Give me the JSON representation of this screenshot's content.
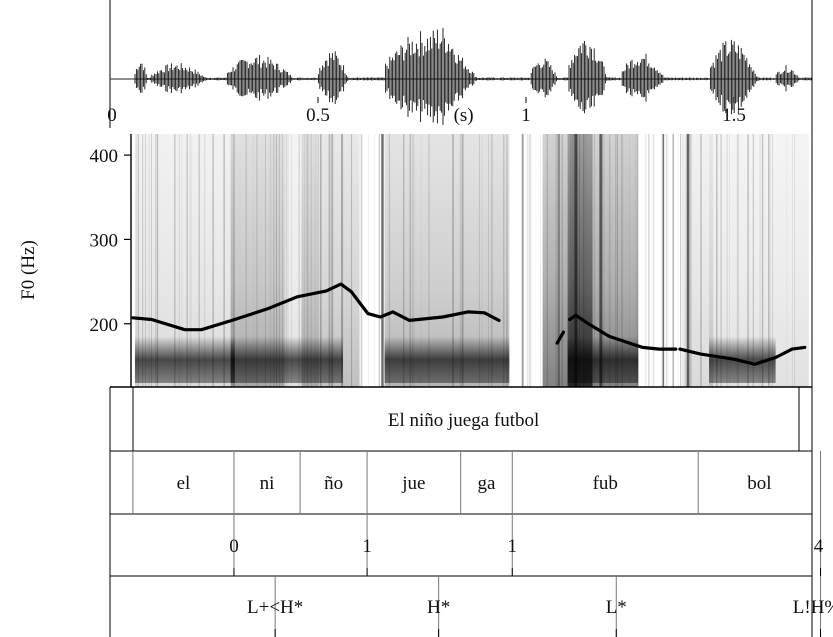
{
  "waveform": {
    "time_ticks": [
      {
        "t": 0,
        "label": "0"
      },
      {
        "t": 0.5,
        "label": "0.5"
      },
      {
        "t": 1,
        "label": "1"
      },
      {
        "t": 1.5,
        "label": "1.5"
      }
    ],
    "unit_label": "(s)",
    "unit_t": 0.85,
    "duration": 1.68
  },
  "spectrogram": {
    "y_label": "F0 (Hz)",
    "y_ticks": [
      {
        "v": 400,
        "label": "400"
      },
      {
        "v": 300,
        "label": "300"
      },
      {
        "v": 200,
        "label": "200"
      }
    ],
    "y_range": [
      125,
      425
    ]
  },
  "f0_contour": [
    [
      [
        0.055,
        207
      ],
      [
        0.1,
        205
      ],
      [
        0.18,
        193
      ],
      [
        0.22,
        193
      ],
      [
        0.3,
        205
      ],
      [
        0.38,
        218
      ],
      [
        0.45,
        232
      ],
      [
        0.52,
        239
      ],
      [
        0.555,
        247
      ],
      [
        0.58,
        238
      ],
      [
        0.62,
        212
      ],
      [
        0.65,
        208
      ],
      [
        0.68,
        214
      ],
      [
        0.72,
        204
      ],
      [
        0.8,
        208
      ],
      [
        0.86,
        214
      ],
      [
        0.9,
        213
      ],
      [
        0.935,
        204
      ]
    ],
    [
      [
        1.075,
        177
      ],
      [
        1.09,
        190
      ]
    ],
    [
      [
        1.105,
        205
      ],
      [
        1.12,
        210
      ],
      [
        1.15,
        200
      ],
      [
        1.2,
        185
      ],
      [
        1.28,
        172
      ],
      [
        1.32,
        170
      ],
      [
        1.36,
        170
      ]
    ],
    [
      [
        1.37,
        170
      ],
      [
        1.42,
        164
      ],
      [
        1.5,
        158
      ],
      [
        1.55,
        152
      ],
      [
        1.6,
        160
      ],
      [
        1.64,
        170
      ],
      [
        1.67,
        172
      ]
    ]
  ],
  "tiers": {
    "sentence": {
      "text": "El niño juega futbol",
      "t": 0.85
    },
    "syllables": [
      {
        "text": "el",
        "start": 0.055,
        "end": 0.298
      },
      {
        "text": "ni",
        "start": 0.298,
        "end": 0.457
      },
      {
        "text": "ño",
        "start": 0.457,
        "end": 0.618
      },
      {
        "text": "jue",
        "start": 0.618,
        "end": 0.843
      },
      {
        "text": "ga",
        "start": 0.843,
        "end": 0.967
      },
      {
        "text": "fub",
        "start": 0.967,
        "end": 1.414
      },
      {
        "text": "bol",
        "start": 1.414,
        "end": 1.708
      }
    ],
    "breaks": [
      {
        "label": "0",
        "t": 0.298
      },
      {
        "label": "1",
        "t": 0.618
      },
      {
        "label": "1",
        "t": 0.967
      },
      {
        "label": "4",
        "t": 1.708
      }
    ],
    "tones": [
      {
        "label": "L+<H*",
        "t": 0.397
      },
      {
        "label": "H*",
        "t": 0.79
      },
      {
        "label": "L*",
        "t": 1.217
      },
      {
        "label": "L!H%",
        "t": 1.708
      }
    ]
  }
}
